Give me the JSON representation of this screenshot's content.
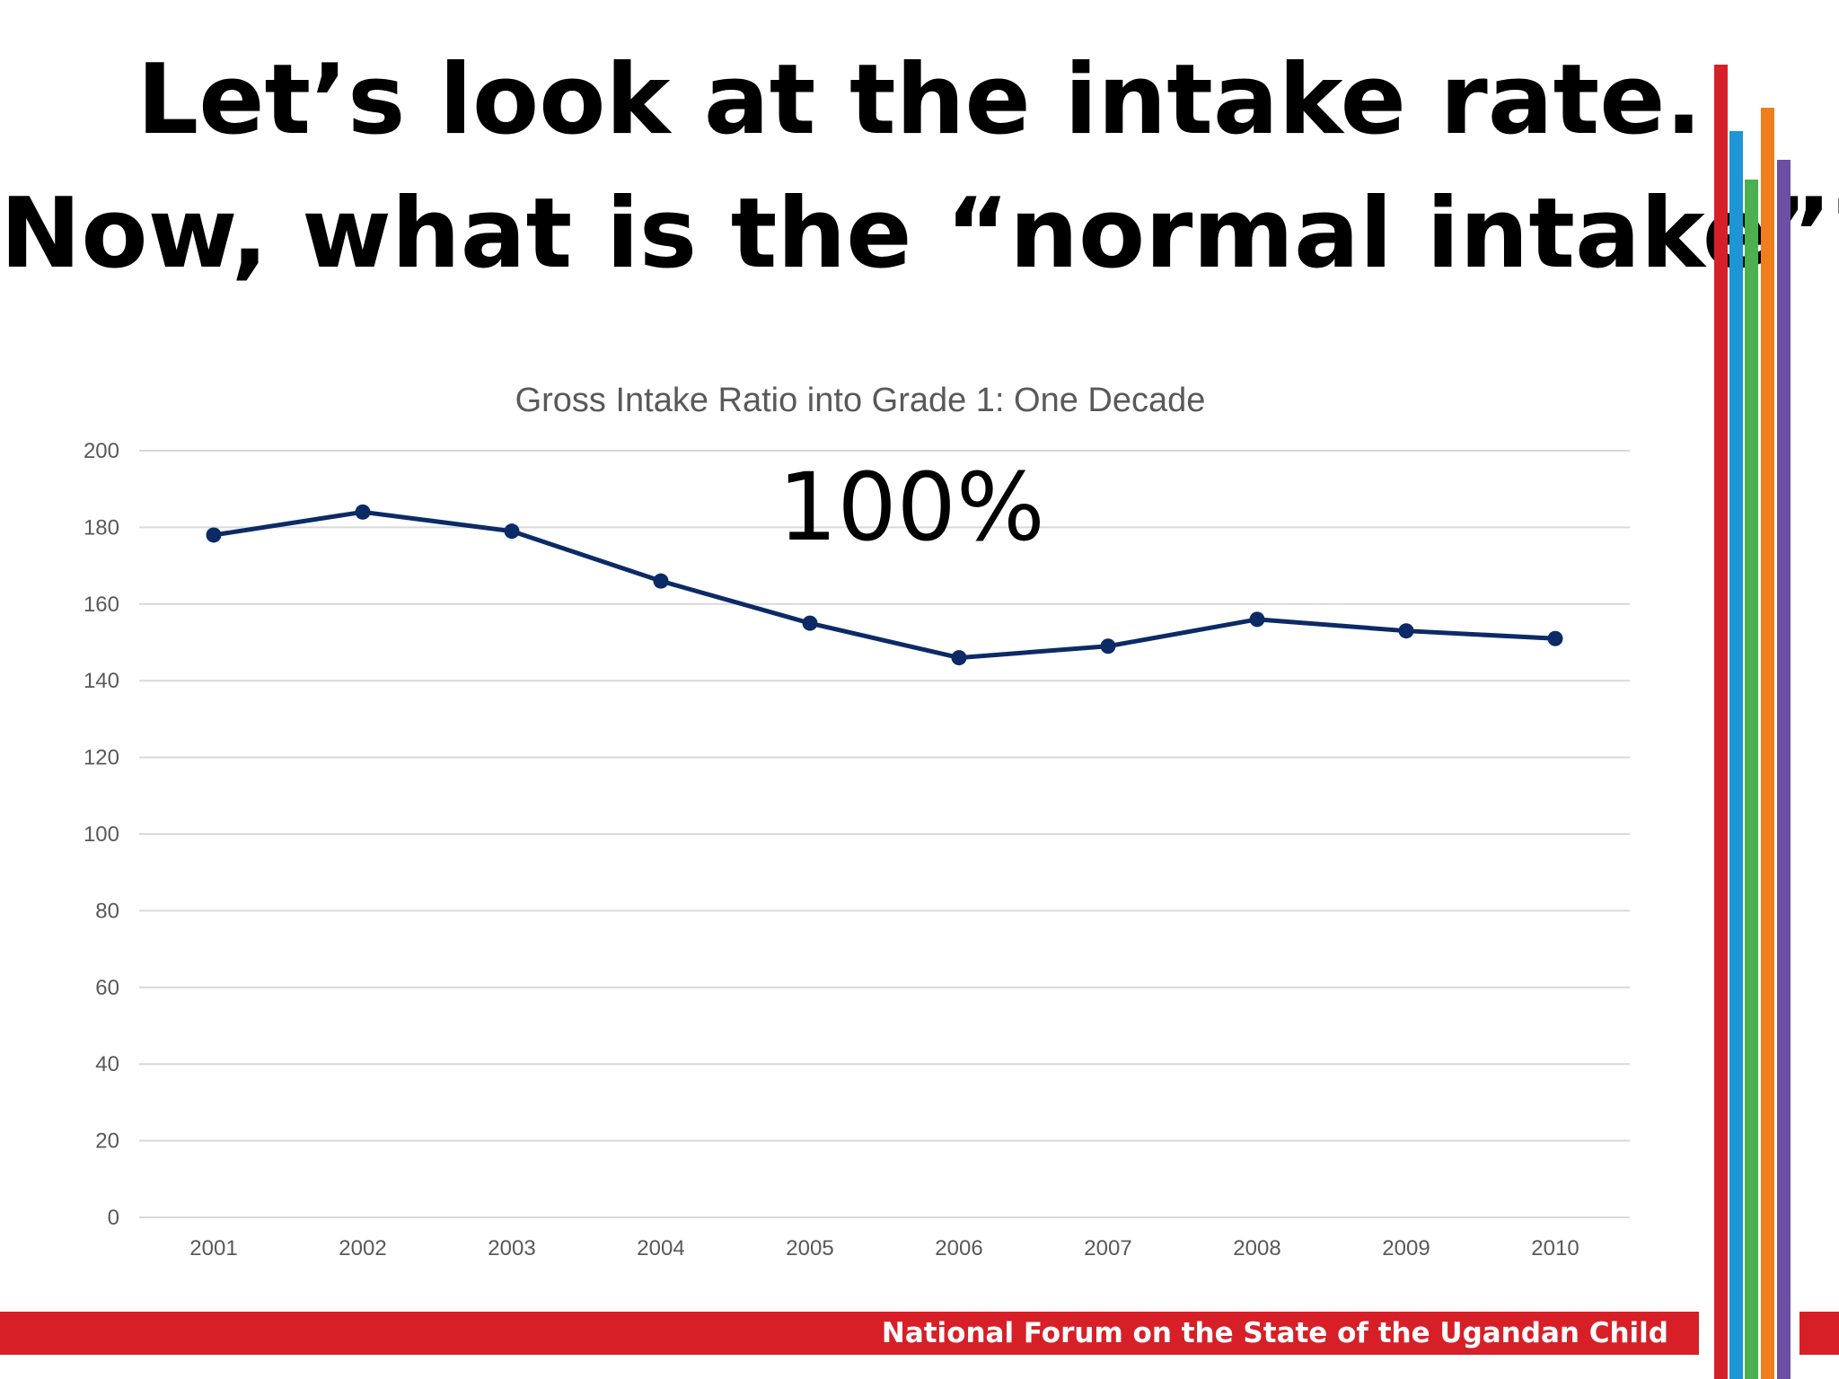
{
  "slide": {
    "title_line_1": "Let’s look at the intake rate.",
    "title_line_2": "Now, what is the “normal intake”?",
    "footer_text": "National Forum on the State of the Ugandan Child"
  },
  "colors": {
    "footer_red": "#d71f28",
    "deco_red": "#d71f28",
    "deco_blue": "#1e95d4",
    "deco_green": "#4caf50",
    "deco_orange": "#f07d1e",
    "deco_purple": "#6a4fa2",
    "series_line": "#0c2a66",
    "gridline": "#d9d9d9",
    "axis_text": "#595959"
  },
  "chart_data": {
    "type": "line",
    "title": "Gross Intake Ratio into Grade 1: One Decade",
    "annotation": "100%",
    "categories": [
      "2001",
      "2002",
      "2003",
      "2004",
      "2005",
      "2006",
      "2007",
      "2008",
      "2009",
      "2010"
    ],
    "series": [
      {
        "values": [
          178,
          184,
          179,
          166,
          155,
          146,
          149,
          156,
          153,
          151
        ]
      }
    ],
    "ylim": [
      0,
      200
    ],
    "yticks": [
      0,
      20,
      40,
      60,
      80,
      100,
      120,
      140,
      160,
      180,
      200
    ],
    "grid": true,
    "legend": "none"
  }
}
